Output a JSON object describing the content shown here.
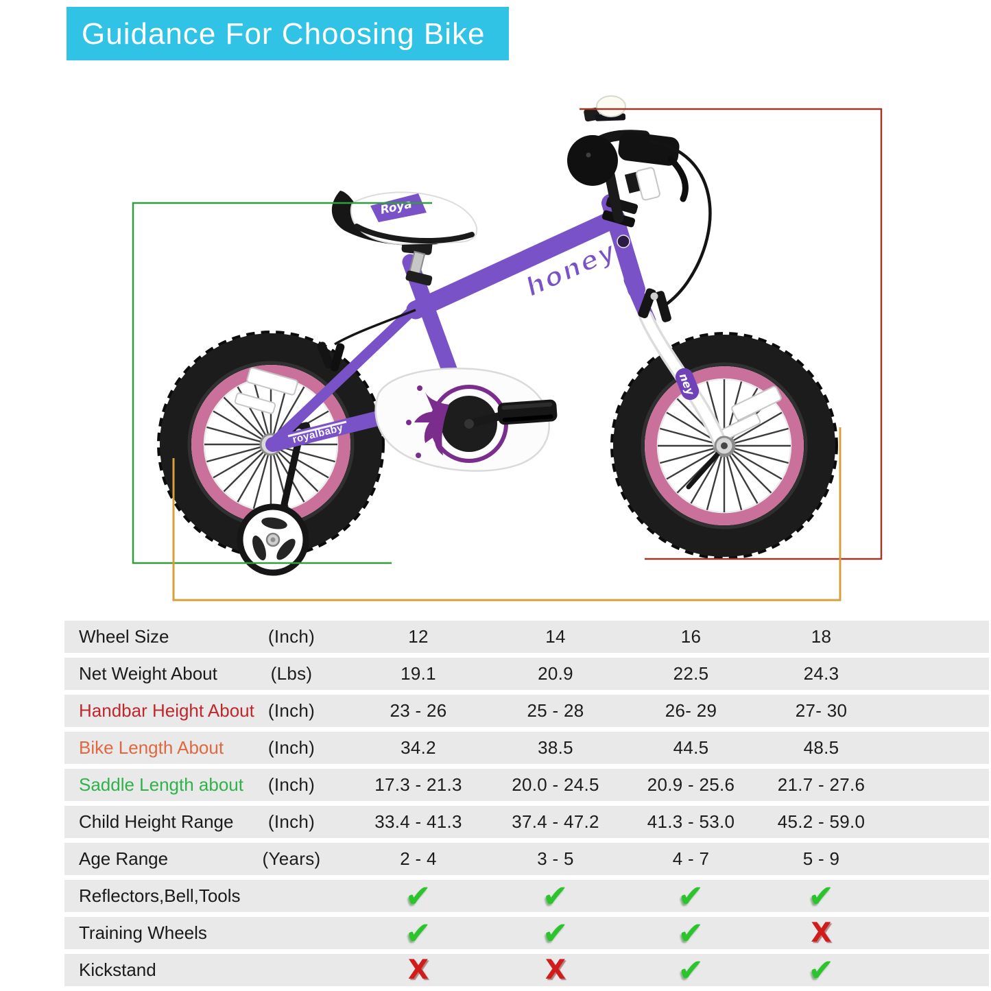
{
  "header": {
    "title": "Guidance For Choosing Bike",
    "bg_color": "#31c3e6",
    "text_color": "#ffffff"
  },
  "bike": {
    "frame_logo": "honey",
    "chainstay_label": "royalbaby",
    "saddle_label": "Roya",
    "fork_label": "ney",
    "colors": {
      "frame_purple": "#7a52c7",
      "rim_pink": "#c9719b",
      "tire_black": "#1c1c1c",
      "chain_guard_white": "#fcfcfc",
      "crown_purple": "#7a2d8c",
      "saddle_white": "#ffffff",
      "bell_white": "#fbfbf2"
    }
  },
  "guides": {
    "saddle_length": {
      "color": "#2e9e3e"
    },
    "handlebar_height": {
      "color": "#a3352b"
    },
    "bike_length": {
      "color": "#d4a13a"
    }
  },
  "table": {
    "icons": {
      "check_glyph": "✔",
      "cross_glyph": "X",
      "check_color": "#2cc42c",
      "cross_color": "#d11c1c"
    },
    "rows": [
      {
        "label": "Wheel Size",
        "unit": "(Inch)",
        "type": "text",
        "values": [
          "12",
          "14",
          "16",
          "18"
        ]
      },
      {
        "label": "Net Weight About",
        "unit": "(Lbs)",
        "type": "text",
        "values": [
          "19.1",
          "20.9",
          "22.5",
          "24.3"
        ]
      },
      {
        "label": "Handbar Height About",
        "unit": "(Inch)",
        "type": "text",
        "label_color": "#c0272d",
        "values": [
          "23 - 26",
          "25 - 28",
          "26- 29",
          "27- 30"
        ]
      },
      {
        "label": "Bike Length About",
        "unit": "(Inch)",
        "type": "text",
        "label_color": "#e0683f",
        "values": [
          "34.2",
          "38.5",
          "44.5",
          "48.5"
        ]
      },
      {
        "label": "Saddle Length about",
        "unit": "(Inch)",
        "type": "text",
        "label_color": "#2eb34a",
        "values": [
          "17.3 - 21.3",
          "20.0 - 24.5",
          "20.9 - 25.6",
          "21.7 - 27.6"
        ]
      },
      {
        "label": "Child Height Range",
        "unit": "(Inch)",
        "type": "text",
        "values": [
          "33.4 - 41.3",
          "37.4 - 47.2",
          "41.3 - 53.0",
          "45.2 - 59.0"
        ]
      },
      {
        "label": "Age Range",
        "unit": "(Years)",
        "type": "text",
        "values": [
          "2 - 4",
          "3 - 5",
          "4 - 7",
          "5 - 9"
        ]
      },
      {
        "label": "Reflectors,Bell,Tools",
        "unit": "",
        "type": "icons",
        "values": [
          "check",
          "check",
          "check",
          "check"
        ]
      },
      {
        "label": "Training Wheels",
        "unit": "",
        "type": "icons",
        "values": [
          "check",
          "check",
          "check",
          "cross"
        ]
      },
      {
        "label": "Kickstand",
        "unit": "",
        "type": "icons",
        "values": [
          "cross",
          "cross",
          "check",
          "check"
        ]
      }
    ]
  }
}
